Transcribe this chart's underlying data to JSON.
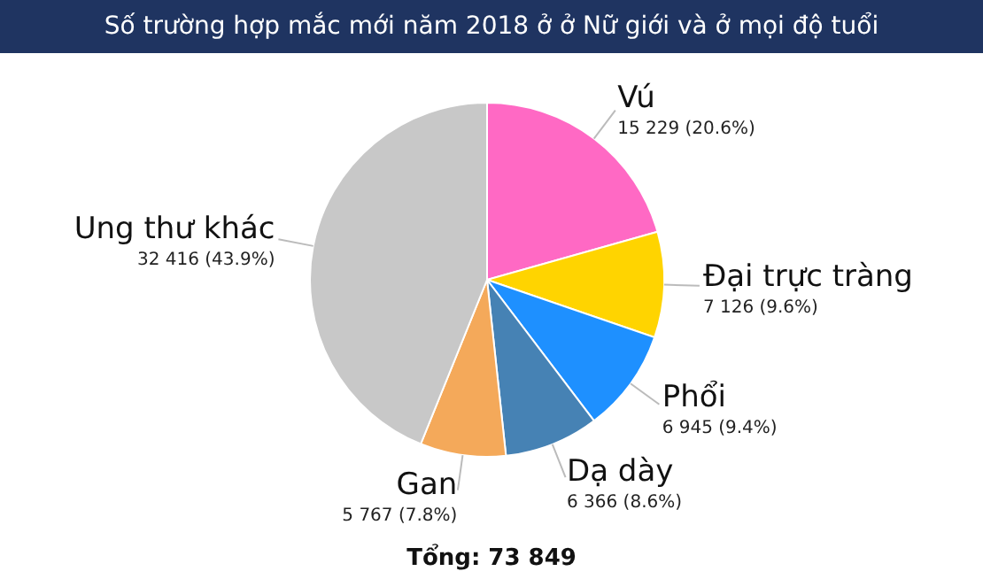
{
  "chart_data": {
    "type": "pie",
    "title": "Số trường hợp mắc mới năm 2018 ở ở Nữ giới và ở mọi độ tuổi",
    "categories": [
      "Vú",
      "Đại trực tràng",
      "Phổi",
      "Dạ dày",
      "Gan",
      "Ung thư khác"
    ],
    "values": [
      15229,
      7126,
      6945,
      6366,
      5767,
      32416
    ],
    "value_labels": [
      "15 229 (20.6%)",
      "7 126 (9.6%)",
      "6 945 (9.4%)",
      "6 366 (8.6%)",
      "5 767 (7.8%)",
      "32 416 (43.9%)"
    ],
    "colors": [
      "#ff69c4",
      "#ffd400",
      "#1e90ff",
      "#4682b4",
      "#f4a95a",
      "#c8c8c8"
    ],
    "annotations": [
      "Tổng: 73 849"
    ],
    "legend": false
  }
}
